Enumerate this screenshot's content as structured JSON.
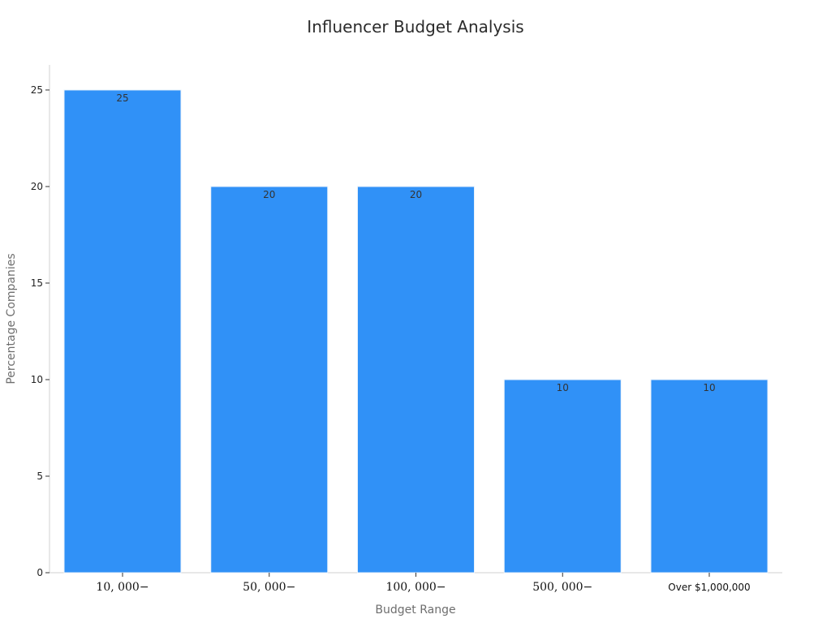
{
  "chart_data": {
    "type": "bar",
    "title": "Influencer Budget Analysis",
    "xlabel": "Budget Range",
    "ylabel": "Percentage Companies",
    "categories": [
      "10, 000−",
      "50, 000−",
      "100, 000−",
      "500, 000−",
      "Over $1,000,000"
    ],
    "values": [
      25,
      20,
      20,
      10,
      10
    ],
    "ylim": [
      0,
      26.3
    ],
    "yticks": [
      "0",
      "5",
      "10",
      "15",
      "20",
      "25"
    ],
    "grid": false,
    "legend": "none",
    "bar_color": "#3091f7"
  }
}
